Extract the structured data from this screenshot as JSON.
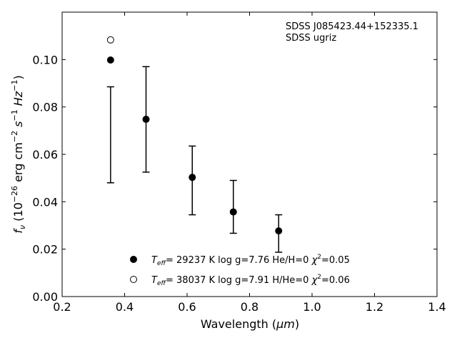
{
  "chart_data": {
    "type": "scatter",
    "annotation_lines": [
      "SDSS J085423.44+152335.1",
      "SDSS ugriz"
    ],
    "xlabel": {
      "main": "Wavelength (",
      "unit": "μm",
      "close": ")"
    },
    "ylabel": {
      "symbol": "f",
      "sub": "ν",
      "text": " (10",
      "exp": "−26",
      "rest": " erg cm",
      "exp2": "−2",
      "s": " s",
      "exp3": "−1",
      "hz": " Hz",
      "exp4": "−1",
      "close": ")"
    },
    "xlim": [
      0.2,
      1.4
    ],
    "ylim": [
      0.0,
      0.12
    ],
    "x_ticks": [
      0.2,
      0.4,
      0.6,
      0.8,
      1.0,
      1.2,
      1.4
    ],
    "x_tick_labels": [
      "0.2",
      "0.4",
      "0.6",
      "0.8",
      "1.0",
      "1.2",
      "1.4"
    ],
    "y_ticks": [
      0.0,
      0.02,
      0.04,
      0.06,
      0.08,
      0.1
    ],
    "y_tick_labels": [
      "0.00",
      "0.02",
      "0.04",
      "0.06",
      "0.08",
      "0.10"
    ],
    "grid": false,
    "legend_position": "bottom-center",
    "observed": {
      "x": [
        0.3551,
        0.4686,
        0.6166,
        0.748,
        0.8932
      ],
      "y_low": [
        0.048,
        0.0525,
        0.0345,
        0.0267,
        0.0187
      ],
      "y_high": [
        0.0885,
        0.097,
        0.0635,
        0.049,
        0.0345
      ]
    },
    "series": [
      {
        "marker": "filled-circle",
        "legend": {
          "teff": "T",
          "teff_sub": "eff",
          "text": "= 29237 K  log g=7.76  He/H=0  ",
          "chi": "χ",
          "chi_exp": "2",
          "chi_val": "=0.05"
        },
        "x": [
          0.3551,
          0.4686,
          0.6166,
          0.748,
          0.8932
        ],
        "y": [
          0.0998,
          0.0748,
          0.0503,
          0.0357,
          0.0277
        ]
      },
      {
        "marker": "open-circle",
        "legend": {
          "teff": "T",
          "teff_sub": "eff",
          "text": "= 38037 K  log g=7.91  H/He=0  ",
          "chi": "χ",
          "chi_exp": "2",
          "chi_val": "=0.06"
        },
        "x": [
          0.3551
        ],
        "y": [
          0.1083
        ]
      }
    ]
  }
}
